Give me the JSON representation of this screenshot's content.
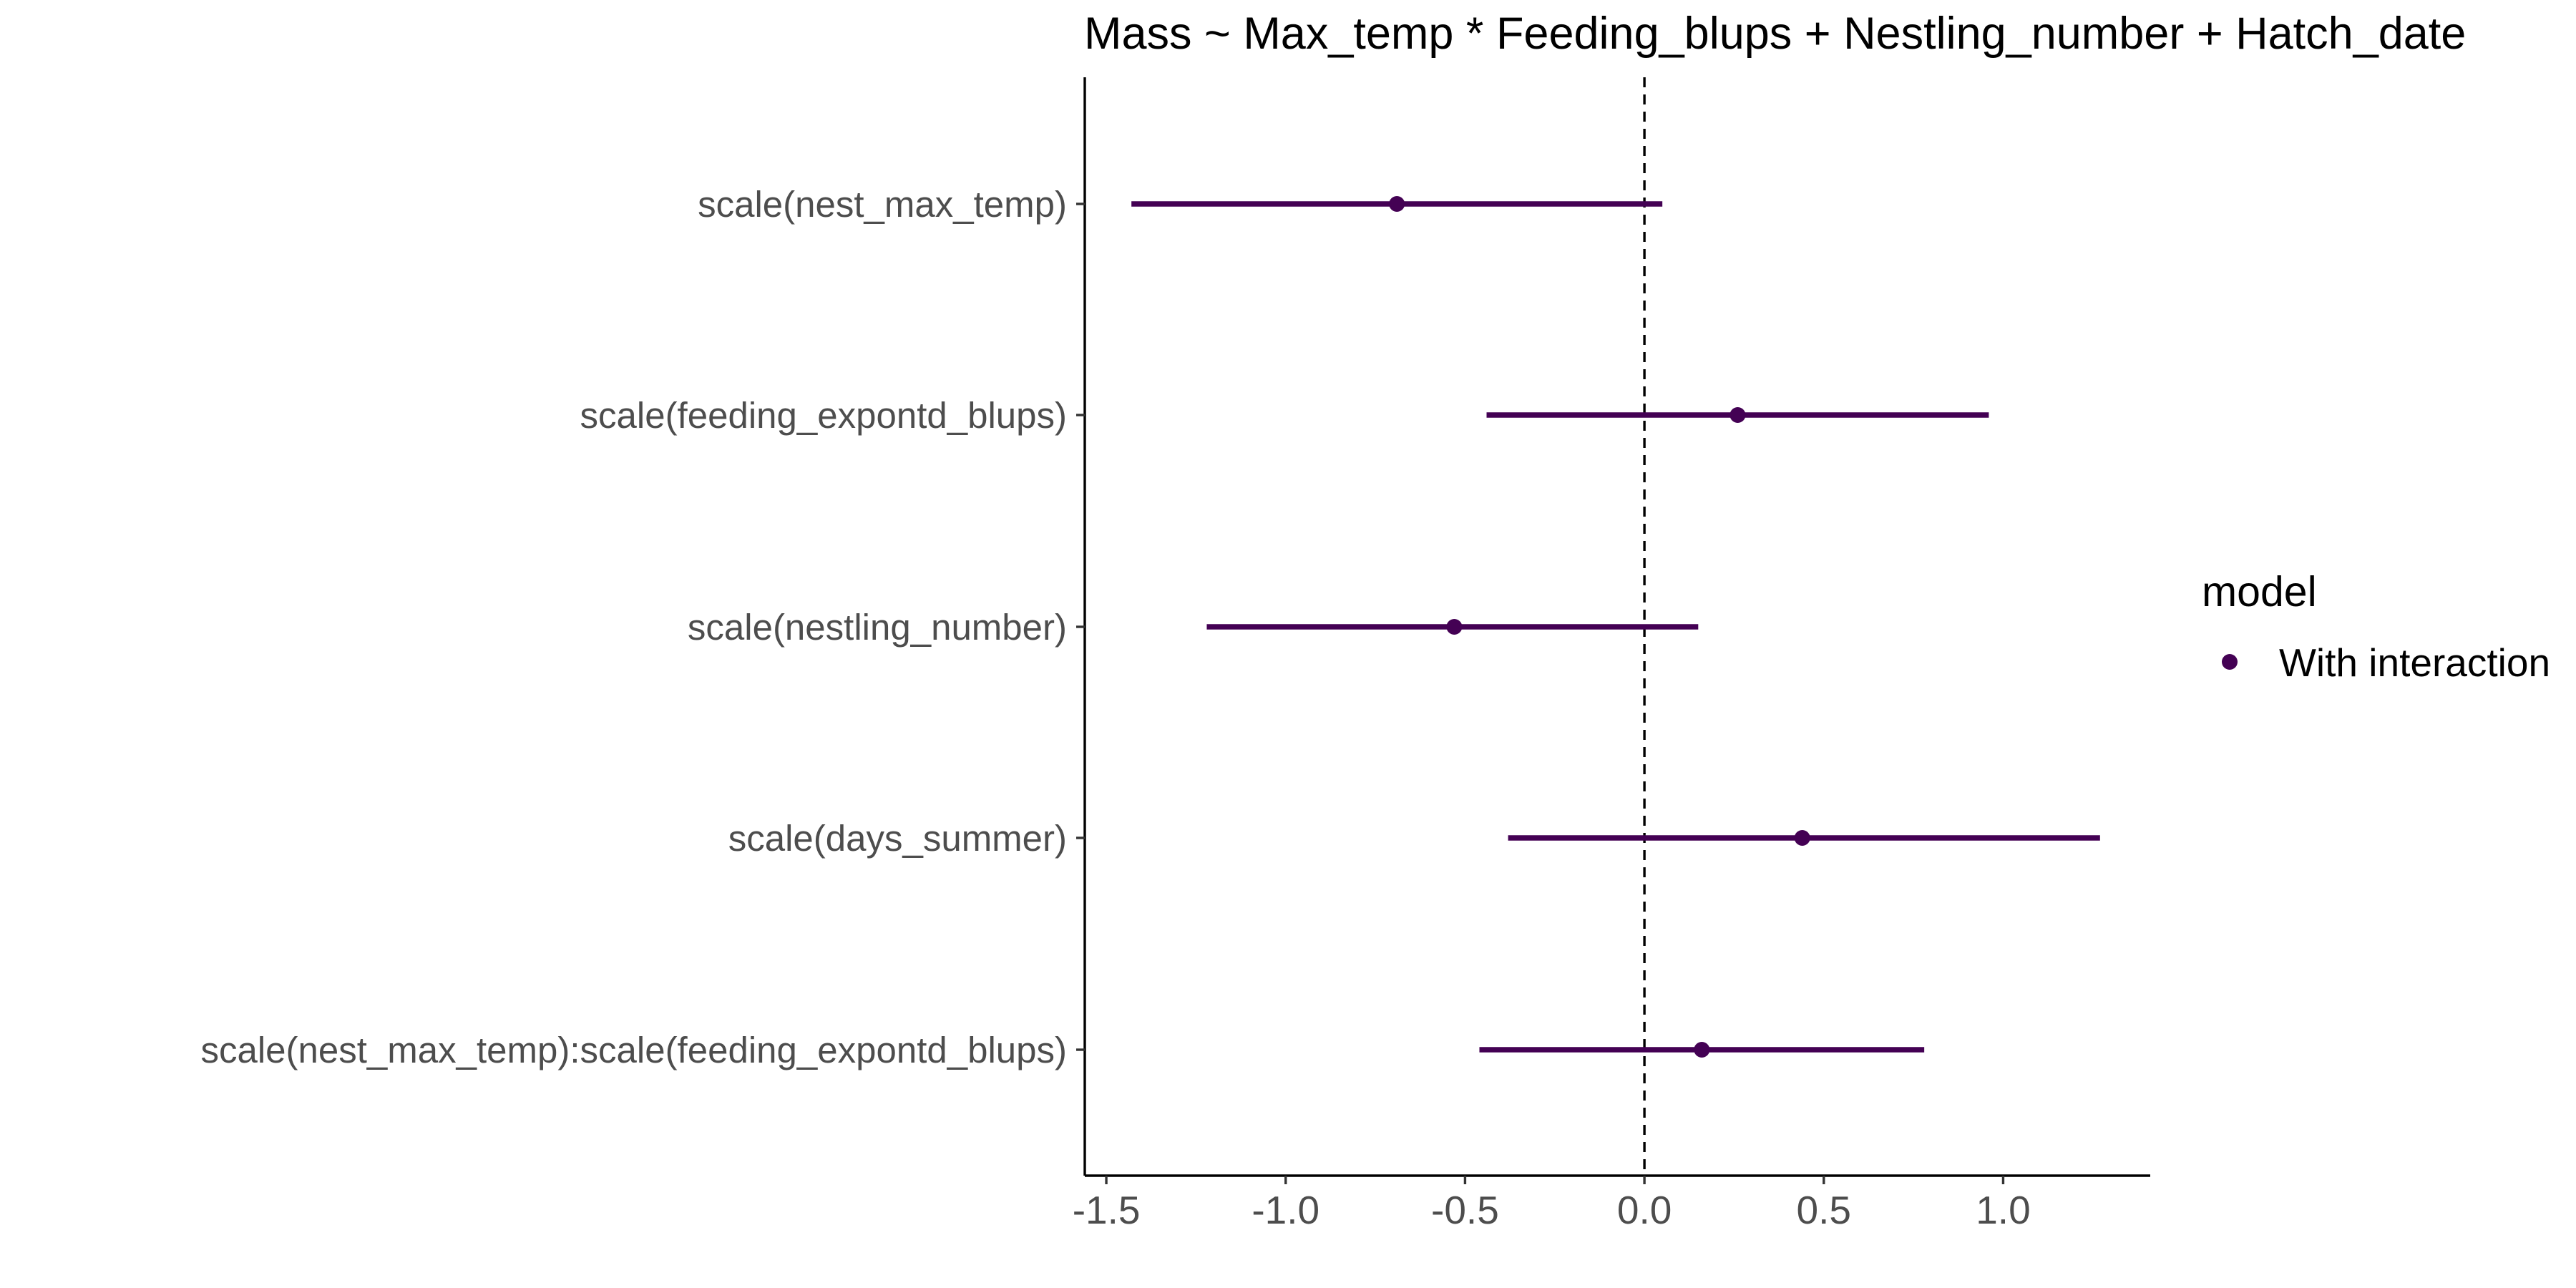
{
  "chart_data": {
    "type": "scatter",
    "title": "Mass ~ Max_temp * Feeding_blups + Nestling_number + Hatch_date",
    "xlabel": "",
    "ylabel": "",
    "xlim": [
      -1.56,
      1.41
    ],
    "x_ticks": [
      "-1.5",
      "-1.0",
      "-0.5",
      "0.0",
      "0.5",
      "1.0"
    ],
    "x_tick_values": [
      -1.5,
      -1.0,
      -0.5,
      0.0,
      0.5,
      1.0
    ],
    "reference_line_x": 0,
    "categories": [
      "scale(nest_max_temp)",
      "scale(feeding_expontd_blups)",
      "scale(nestling_number)",
      "scale(days_summer)",
      "scale(nest_max_temp):scale(feeding_expontd_blups)"
    ],
    "series": [
      {
        "name": "With interaction",
        "color": "#440154",
        "estimate": [
          -0.69,
          0.26,
          -0.53,
          0.44,
          0.16
        ],
        "lower": [
          -1.43,
          -0.44,
          -1.22,
          -0.38,
          -0.46
        ],
        "upper": [
          0.05,
          0.96,
          0.15,
          1.27,
          0.78
        ]
      }
    ],
    "legend": {
      "title": "model",
      "position": "right"
    },
    "grid": false
  }
}
